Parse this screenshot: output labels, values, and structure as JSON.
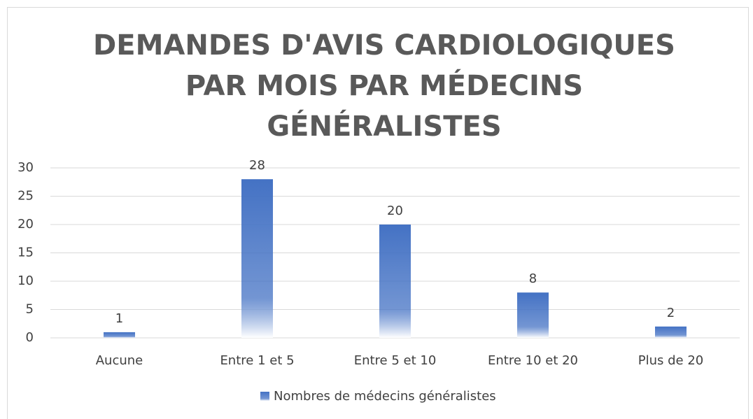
{
  "chart_data": {
    "type": "bar",
    "title": [
      "DEMANDES D'AVIS CARDIOLOGIQUES",
      "PAR MOIS PAR MÉDECINS",
      "GÉNÉRALISTES"
    ],
    "categories": [
      "Aucune",
      "Entre 1 et 5",
      "Entre 5 et 10",
      "Entre 10 et 20",
      "Plus de 20"
    ],
    "series": [
      {
        "name": "Nombres de médecins généralistes",
        "color": "#4472c4",
        "values": [
          1,
          28,
          20,
          8,
          2
        ]
      }
    ],
    "ylim": [
      0,
      30
    ],
    "yticks": [
      0,
      5,
      10,
      15,
      20,
      25,
      30
    ],
    "grid": true,
    "legend": "bottom"
  }
}
